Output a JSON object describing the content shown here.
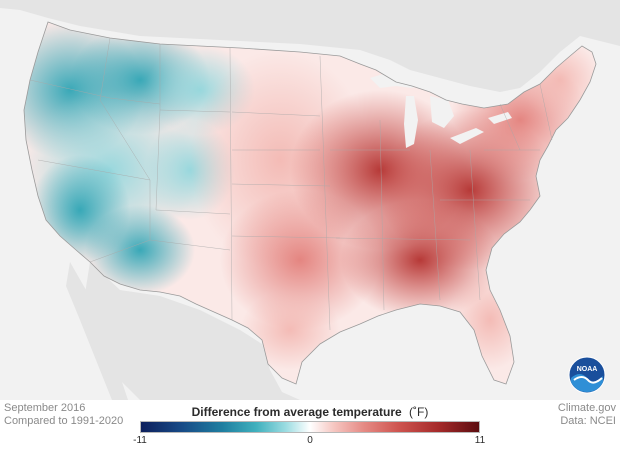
{
  "map": {
    "period_label": "September 2016",
    "baseline_label": "Compared to 1991-2020",
    "legend": {
      "title": "Difference from average temperature",
      "unit": "(˚F)",
      "min_label": "-11",
      "mid_label": "0",
      "max_label": "11",
      "min_value": -11,
      "mid_value": 0,
      "max_value": 11,
      "colors": {
        "cold_extreme": "#0d1f5c",
        "cold": "#3fb0bd",
        "neutral": "#ffffff",
        "warm": "#e58a84",
        "warm_extreme": "#5c0d10"
      }
    },
    "source": {
      "publisher": "Climate.gov",
      "data_credit": "Data: NCEI"
    },
    "logo": {
      "name": "noaa-logo",
      "text": "NOAA"
    }
  }
}
